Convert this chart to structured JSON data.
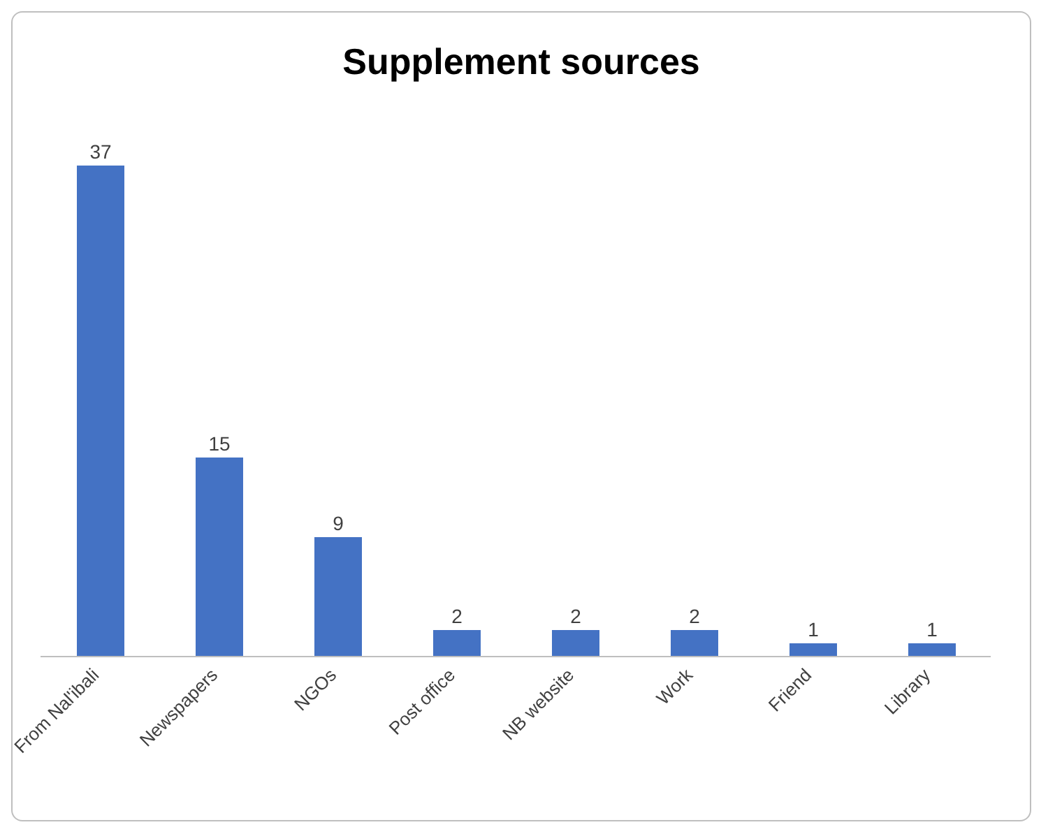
{
  "chart_data": {
    "type": "bar",
    "title": "Supplement sources",
    "categories": [
      "From Nal'ibali",
      "Newspapers",
      "NGOs",
      "Post office",
      "NB website",
      "Work",
      "Friend",
      "Library"
    ],
    "values": [
      37,
      15,
      9,
      2,
      2,
      2,
      1,
      1
    ],
    "color": "#4472c4",
    "data_labels": true
  }
}
